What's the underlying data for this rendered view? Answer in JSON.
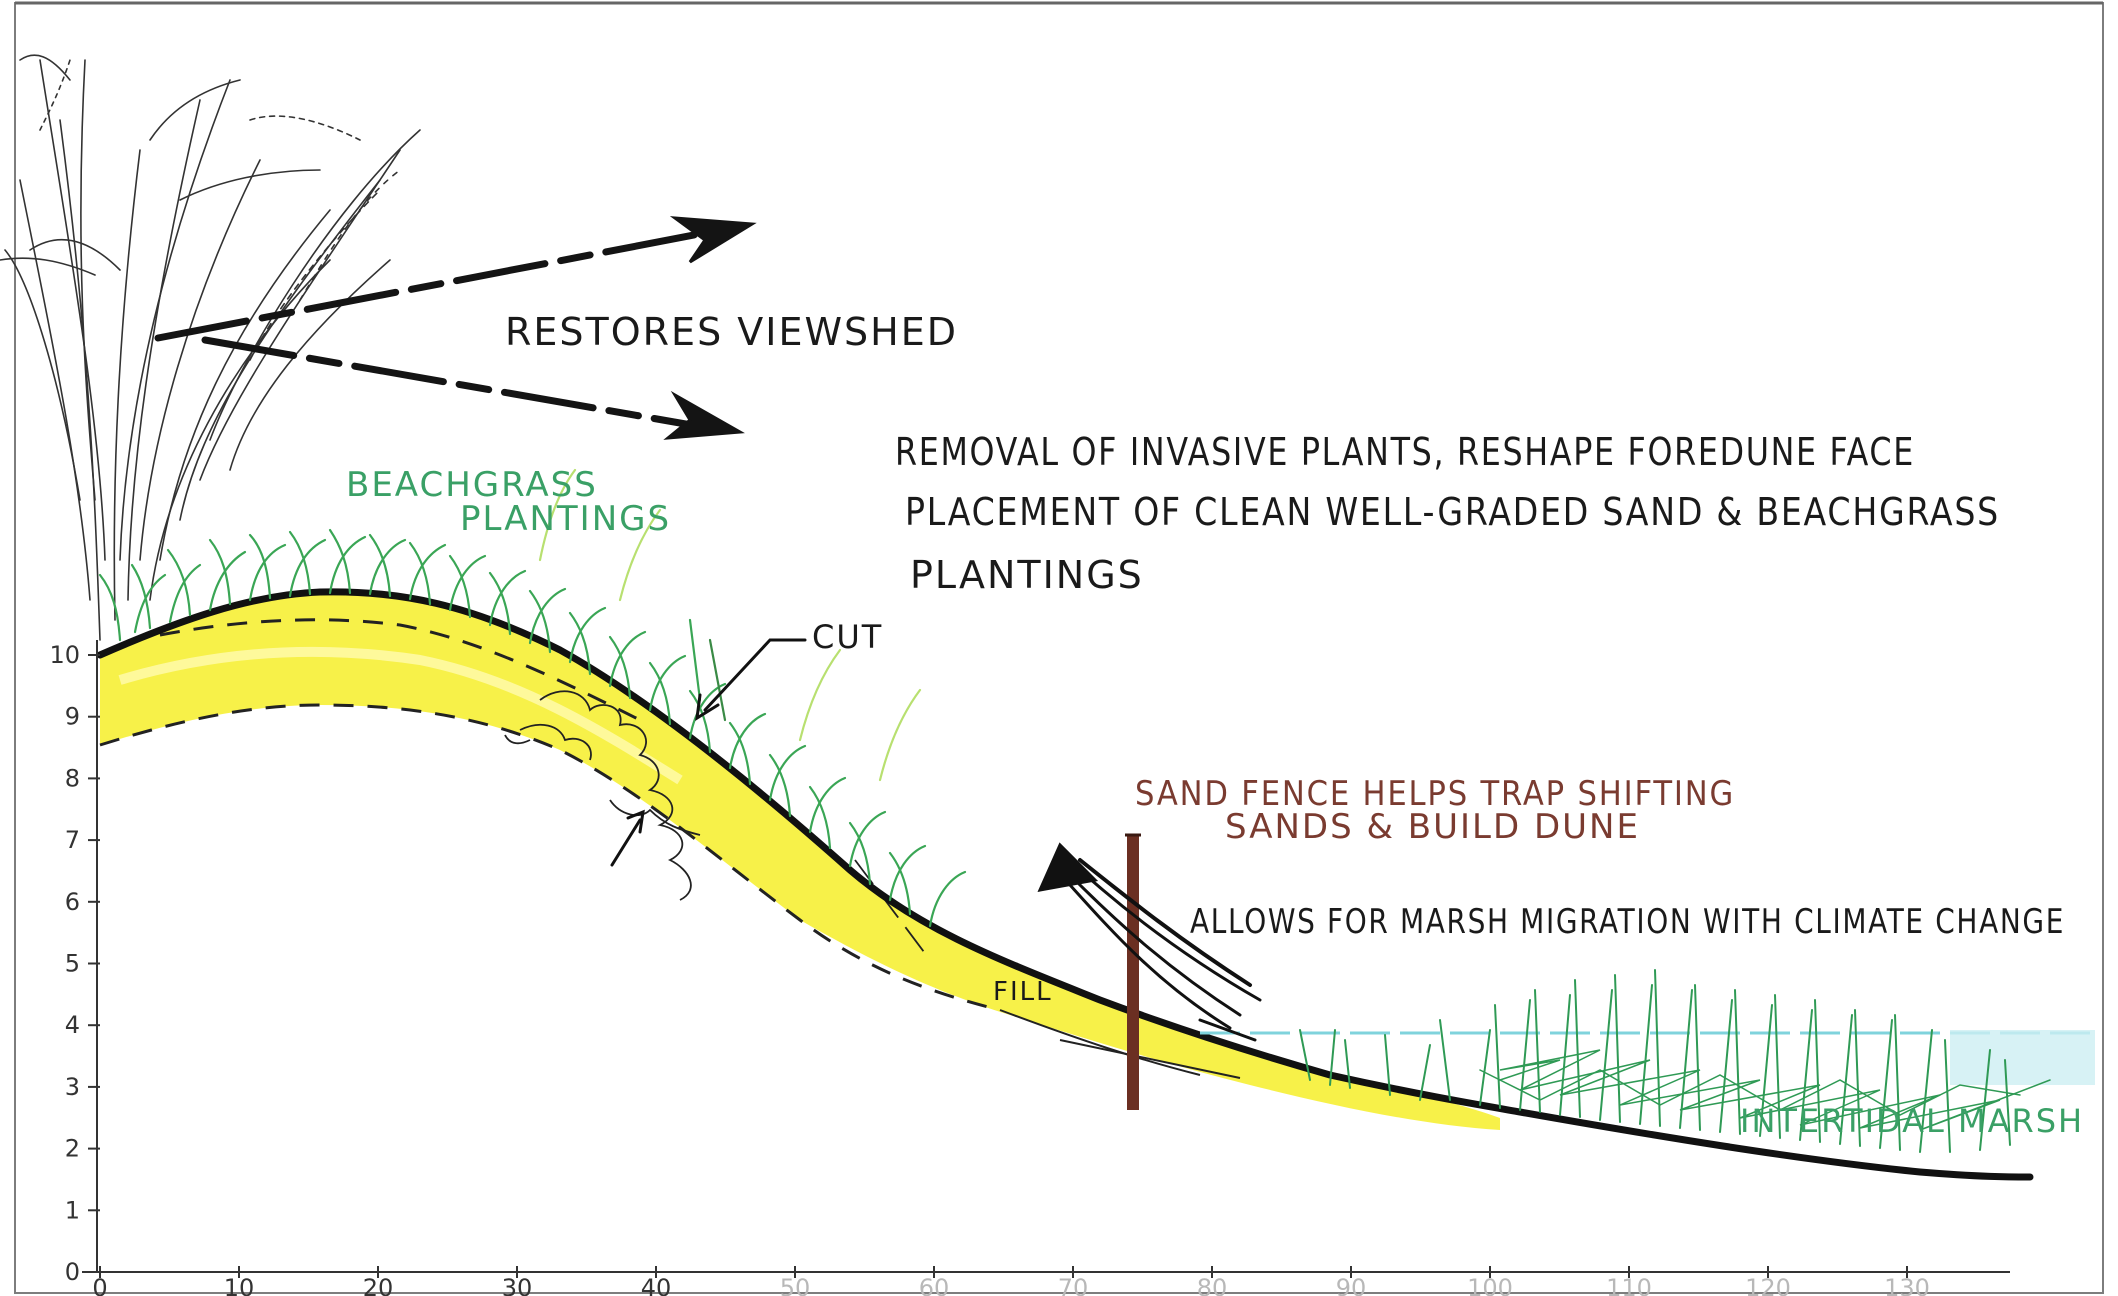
{
  "annotations": {
    "restores_viewshed": "RESTORES VIEWSHED",
    "beachgrass_line1": "BEACHGRASS",
    "beachgrass_line2": "PLANTINGS",
    "removal_line1": "REMOVAL OF INVASIVE PLANTS, RESHAPE FOREDUNE FACE",
    "removal_line2": "PLACEMENT OF CLEAN WELL-GRADED SAND & BEACHGRASS",
    "removal_line3": "PLANTINGS",
    "cut": "CUT",
    "fill": "FILL",
    "sand_fence_line1": "SAND FENCE HELPS TRAP SHIFTING",
    "sand_fence_line2": "SANDS & BUILD DUNE",
    "marsh_migration": "ALLOWS FOR MARSH MIGRATION WITH CLIMATE CHANGE",
    "intertidal_marsh": "INTERTIDAL MARSH"
  },
  "y_axis": {
    "ticks": [
      "0",
      "1",
      "2",
      "3",
      "4",
      "5",
      "6",
      "7",
      "8",
      "9",
      "10"
    ]
  },
  "x_axis": {
    "ticks": [
      "0",
      "10",
      "20",
      "30",
      "40",
      "50",
      "60",
      "70",
      "80",
      "90",
      "100",
      "110",
      "120",
      "130"
    ]
  },
  "colors": {
    "sand_fill": "#f6f03a",
    "ground_line": "#111111",
    "beachgrass": "#3aa655",
    "marsh_grass": "#2f9a55",
    "water": "#7fd3dc",
    "fence_post": "#6b2f22",
    "label_green": "#3aa066",
    "label_brown": "#7a3b30"
  }
}
